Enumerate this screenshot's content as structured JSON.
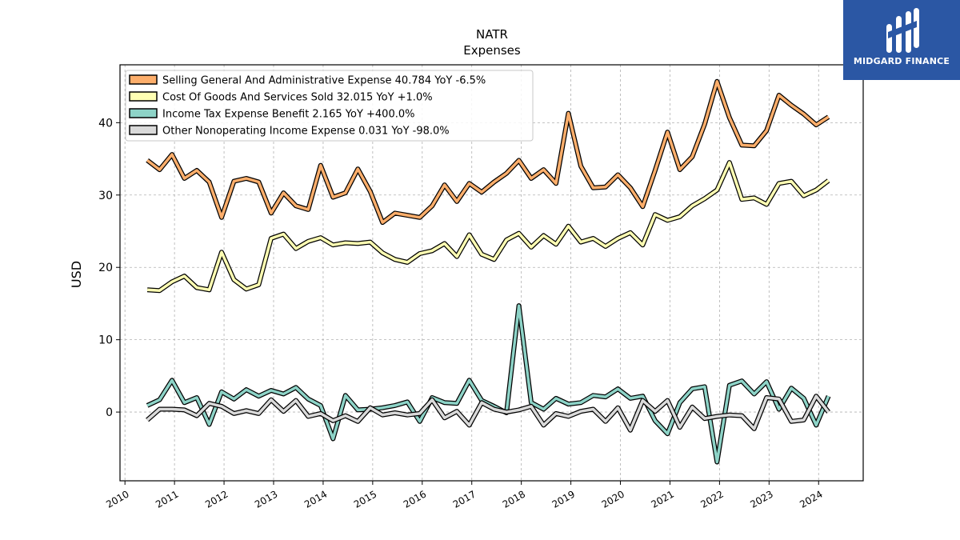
{
  "brand": {
    "name": "MIDGARD FINANCE",
    "color": "#2b57a4"
  },
  "chart_data": {
    "type": "line",
    "title": "NATR",
    "subtitle": "Expenses",
    "ylabel": "USD",
    "xlabel": "",
    "ylim": [
      -9.5,
      48
    ],
    "xlim": [
      2009.9,
      2024.9
    ],
    "grid": true,
    "legend_position": "top-left",
    "x_ticks": [
      "2010",
      "2011",
      "2012",
      "2013",
      "2014",
      "2015",
      "2016",
      "2017",
      "2018",
      "2019",
      "2020",
      "2021",
      "2022",
      "2023",
      "2024"
    ],
    "y_ticks": [
      0,
      10,
      20,
      30,
      40
    ],
    "x": [
      2010.45,
      2010.7,
      2010.95,
      2011.2,
      2011.45,
      2011.7,
      2011.95,
      2012.2,
      2012.45,
      2012.7,
      2012.95,
      2013.2,
      2013.45,
      2013.7,
      2013.95,
      2014.2,
      2014.45,
      2014.7,
      2014.95,
      2015.2,
      2015.45,
      2015.7,
      2015.95,
      2016.2,
      2016.45,
      2016.7,
      2016.95,
      2017.2,
      2017.45,
      2017.7,
      2017.95,
      2018.2,
      2018.45,
      2018.7,
      2018.95,
      2019.2,
      2019.45,
      2019.7,
      2019.95,
      2020.2,
      2020.45,
      2020.7,
      2020.95,
      2021.2,
      2021.45,
      2021.7,
      2021.95,
      2022.2,
      2022.45,
      2022.7,
      2022.95,
      2023.2,
      2023.45,
      2023.7,
      2023.95,
      2024.2
    ],
    "series": [
      {
        "name": "Selling General And Administrative Expense  40.784 YoY -6.5%",
        "color": "#fdae6b",
        "values": [
          34.8,
          33.5,
          35.6,
          32.3,
          33.4,
          31.8,
          26.9,
          31.9,
          32.3,
          31.8,
          27.5,
          30.3,
          28.5,
          28.0,
          34.1,
          29.7,
          30.3,
          33.6,
          30.5,
          26.2,
          27.5,
          27.2,
          26.9,
          28.5,
          31.4,
          29.1,
          31.6,
          30.4,
          31.8,
          33.0,
          34.8,
          32.3,
          33.5,
          31.6,
          41.3,
          34.0,
          31.0,
          31.1,
          32.8,
          31.0,
          28.4,
          33.4,
          38.7,
          33.5,
          35.3,
          39.8,
          45.7,
          40.7,
          36.9,
          36.8,
          38.9,
          43.8,
          42.4,
          41.2,
          39.7,
          40.8
        ]
      },
      {
        "name": "Cost Of Goods And Services Sold  32.015 YoY +1.0%",
        "color": "#ffffb3",
        "values": [
          16.9,
          16.8,
          18.0,
          18.8,
          17.2,
          16.9,
          22.1,
          18.3,
          17.0,
          17.6,
          24.0,
          24.6,
          22.6,
          23.6,
          24.1,
          23.1,
          23.4,
          23.3,
          23.5,
          22.0,
          21.1,
          20.7,
          21.9,
          22.3,
          23.3,
          21.5,
          24.5,
          21.8,
          21.1,
          23.8,
          24.7,
          22.8,
          24.4,
          23.2,
          25.7,
          23.5,
          24.0,
          22.9,
          24.0,
          24.8,
          23.1,
          27.3,
          26.5,
          27.0,
          28.5,
          29.5,
          30.7,
          34.5,
          29.4,
          29.6,
          28.7,
          31.6,
          31.9,
          29.9,
          30.7,
          32.0
        ]
      },
      {
        "name": "Income Tax Expense Benefit  2.165 YoY +400.0%",
        "color": "#8dd3c7",
        "values": [
          0.9,
          1.7,
          4.4,
          1.3,
          2.0,
          -1.7,
          2.8,
          1.8,
          3.1,
          2.2,
          3.0,
          2.5,
          3.4,
          1.8,
          0.9,
          -3.7,
          2.3,
          0.3,
          0.4,
          0.6,
          0.9,
          1.4,
          -1.3,
          2.0,
          1.3,
          1.2,
          4.4,
          1.6,
          0.8,
          -0.1,
          14.7,
          1.3,
          0.4,
          1.9,
          1.1,
          1.3,
          2.3,
          2.1,
          3.2,
          1.9,
          2.2,
          -1.2,
          -3.0,
          1.3,
          3.2,
          3.5,
          -6.9,
          3.7,
          4.3,
          2.5,
          4.2,
          0.4,
          3.3,
          1.9,
          -1.8,
          2.2
        ]
      },
      {
        "name": "Other Nonoperating Income Expense  0.031 YoY -98.0%",
        "color": "#d9d9d9",
        "values": [
          -1.1,
          0.4,
          0.4,
          0.3,
          -0.5,
          1.2,
          0.8,
          -0.2,
          0.2,
          -0.2,
          1.7,
          0.1,
          1.6,
          -0.6,
          -0.2,
          -1.2,
          -0.5,
          -1.3,
          0.6,
          -0.4,
          -0.1,
          -0.4,
          -0.2,
          1.7,
          -0.8,
          0.1,
          -1.8,
          1.3,
          0.4,
          0.0,
          0.3,
          0.8,
          -1.8,
          -0.2,
          -0.6,
          0.1,
          0.4,
          -1.3,
          0.6,
          -2.5,
          1.6,
          0.1,
          1.6,
          -2.1,
          0.7,
          -0.9,
          -0.6,
          -0.4,
          -0.5,
          -2.3,
          2.0,
          1.8,
          -1.3,
          -1.1,
          2.2,
          0.0
        ]
      }
    ]
  }
}
